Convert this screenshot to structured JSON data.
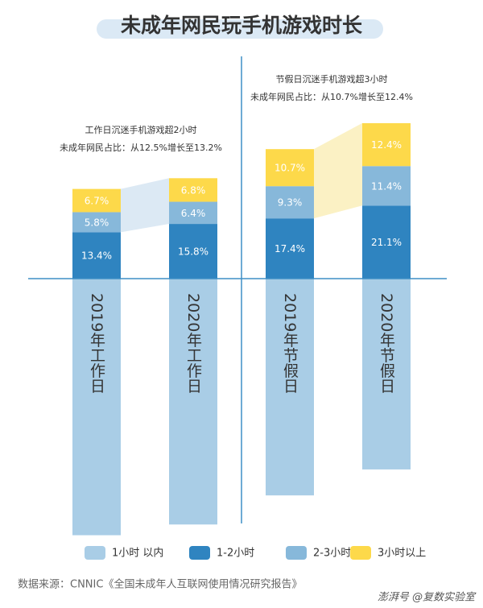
{
  "chart_data": {
    "type": "bar",
    "title": "未成年网民玩手机游戏时长",
    "categories": [
      "2019年工作日",
      "2020年工作日",
      "2019年节假日",
      "2020年节假日"
    ],
    "series": [
      {
        "name": "1小时 以内",
        "color": "#a9cde6",
        "values": [
          74.1,
          71.0,
          62.6,
          55.1
        ]
      },
      {
        "name": "1-2小时",
        "color": "#2f84c0",
        "values": [
          13.4,
          15.8,
          17.4,
          21.1
        ],
        "value_labels": [
          "13.4%",
          "15.8%",
          "17.4%",
          "21.1%"
        ]
      },
      {
        "name": "2-3小时",
        "color": "#87b8da",
        "values": [
          5.8,
          6.4,
          9.3,
          11.4
        ],
        "value_labels": [
          "5.8%",
          "6.4%",
          "9.3%",
          "11.4%"
        ]
      },
      {
        "name": "3小时以上",
        "color": "#fdd94a",
        "values": [
          6.7,
          6.8,
          10.7,
          12.4
        ],
        "value_labels": [
          "6.7%",
          "6.8%",
          "10.7%",
          "12.4%"
        ]
      }
    ],
    "annotations": [
      [
        "工作日沉迷手机游戏超2小时",
        "未成年网民占比：从12.5%增长至13.2%"
      ],
      [
        "节假日沉迷手机游戏超3小时",
        "未成年网民占比：从10.7%增长至12.4%"
      ]
    ],
    "source": "数据来源：CNNIC《全国未成年人互联网使用情况研究报告》",
    "watermark": "澎湃号 @复数实验室"
  }
}
